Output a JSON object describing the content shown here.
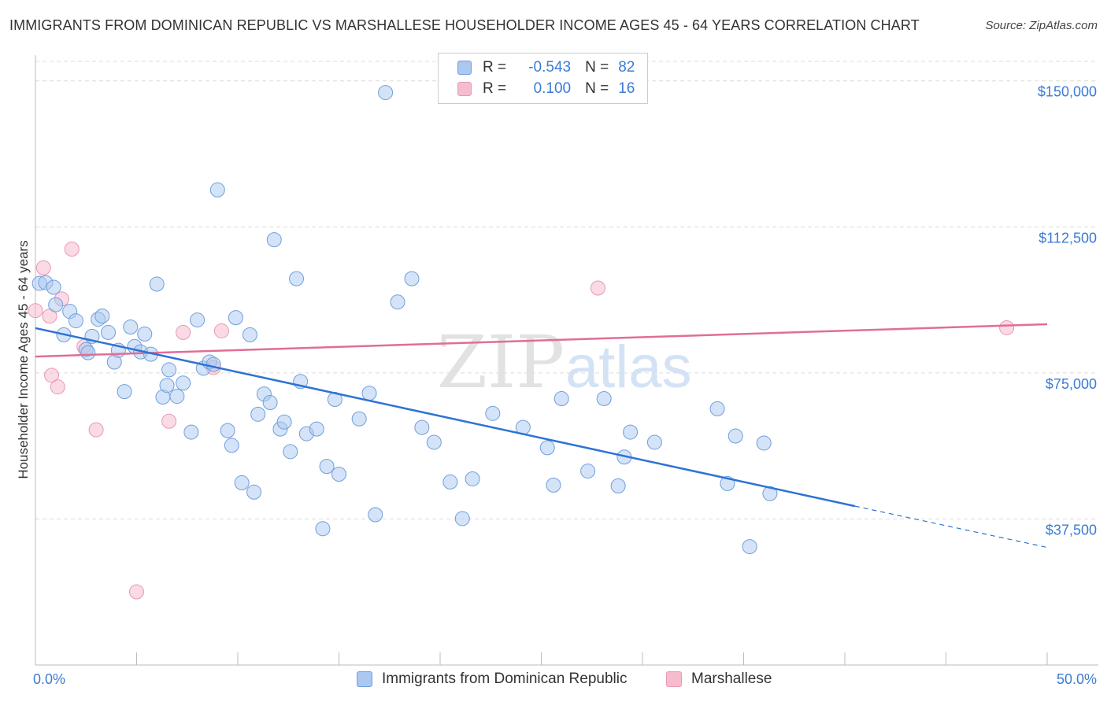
{
  "title": "IMMIGRANTS FROM DOMINICAN REPUBLIC VS MARSHALLESE HOUSEHOLDER INCOME AGES 45 - 64 YEARS CORRELATION CHART",
  "source": "Source: ZipAtlas.com",
  "legend": {
    "rows": [
      {
        "r_label": "R =",
        "r_value": "-0.543",
        "n_label": "N =",
        "n_value": "82"
      },
      {
        "r_label": "R =",
        "r_value": "0.100",
        "n_label": "N =",
        "n_value": "16"
      }
    ]
  },
  "bottom_legend": {
    "series1": "Immigrants from Dominican Republic",
    "series2": "Marshallese"
  },
  "colors": {
    "blue_fill": "#aac8f0",
    "blue_stroke": "#6f9fdc",
    "blue_line": "#2e73d4",
    "pink_fill": "#f6bccd",
    "pink_stroke": "#e899b3",
    "pink_line": "#e06e96",
    "grid": "#dcdcdc",
    "label": "#3a7bd5"
  },
  "watermark": {
    "part1": "ZIP",
    "part2": "atlas"
  },
  "chart_data": {
    "type": "scatter",
    "title": "IMMIGRANTS FROM DOMINICAN REPUBLIC VS MARSHALLESE HOUSEHOLDER INCOME AGES 45 - 64 YEARS CORRELATION CHART",
    "xlabel": "",
    "ylabel": "Householder Income Ages 45 - 64 years",
    "xlim": [
      0,
      50
    ],
    "ylim": [
      0,
      155000
    ],
    "x_tick_labels": [
      "0.0%",
      "50.0%"
    ],
    "y_ticks": [
      37500,
      75000,
      112500,
      150000
    ],
    "y_tick_labels": [
      "$37,500",
      "$75,000",
      "$112,500",
      "$150,000"
    ],
    "grid": true,
    "series": [
      {
        "name": "Immigrants from Dominican Republic",
        "R": -0.543,
        "N": 82,
        "trend": {
          "x0": 0,
          "y0": 86500,
          "x1": 40.5,
          "y1": 40800,
          "dash_to_x": 50,
          "dash_to_y": 30200
        },
        "points": [
          [
            0.2,
            98000
          ],
          [
            0.5,
            98200
          ],
          [
            0.9,
            97000
          ],
          [
            1.0,
            92500
          ],
          [
            1.4,
            84800
          ],
          [
            1.7,
            90800
          ],
          [
            2.0,
            88400
          ],
          [
            2.5,
            81000
          ],
          [
            2.6,
            80200
          ],
          [
            2.8,
            84400
          ],
          [
            3.1,
            88800
          ],
          [
            3.3,
            89600
          ],
          [
            3.6,
            85400
          ],
          [
            3.9,
            77800
          ],
          [
            4.1,
            80800
          ],
          [
            4.4,
            70200
          ],
          [
            4.7,
            86800
          ],
          [
            4.9,
            81800
          ],
          [
            5.2,
            80400
          ],
          [
            5.4,
            85000
          ],
          [
            5.7,
            79800
          ],
          [
            6.0,
            97800
          ],
          [
            6.3,
            68800
          ],
          [
            6.5,
            71800
          ],
          [
            6.6,
            75800
          ],
          [
            7.0,
            69000
          ],
          [
            7.3,
            72400
          ],
          [
            7.7,
            59800
          ],
          [
            8.0,
            88600
          ],
          [
            8.3,
            76200
          ],
          [
            8.6,
            77800
          ],
          [
            8.8,
            77200
          ],
          [
            9.0,
            122000
          ],
          [
            9.5,
            60200
          ],
          [
            9.7,
            56400
          ],
          [
            9.9,
            89200
          ],
          [
            10.2,
            46800
          ],
          [
            10.6,
            84800
          ],
          [
            10.8,
            44400
          ],
          [
            11.0,
            64400
          ],
          [
            11.3,
            69600
          ],
          [
            11.6,
            67400
          ],
          [
            11.8,
            109200
          ],
          [
            12.1,
            60600
          ],
          [
            12.3,
            62400
          ],
          [
            12.6,
            54800
          ],
          [
            12.9,
            99200
          ],
          [
            13.1,
            72800
          ],
          [
            13.4,
            59400
          ],
          [
            13.9,
            60600
          ],
          [
            14.2,
            35000
          ],
          [
            14.4,
            51000
          ],
          [
            14.8,
            68200
          ],
          [
            15.0,
            49000
          ],
          [
            16.0,
            63200
          ],
          [
            16.5,
            69800
          ],
          [
            16.8,
            38600
          ],
          [
            17.3,
            147000
          ],
          [
            17.9,
            93200
          ],
          [
            18.6,
            99200
          ],
          [
            19.1,
            61000
          ],
          [
            19.7,
            57200
          ],
          [
            20.5,
            47000
          ],
          [
            21.1,
            37600
          ],
          [
            21.6,
            47800
          ],
          [
            22.6,
            64600
          ],
          [
            24.1,
            61000
          ],
          [
            25.3,
            55800
          ],
          [
            25.6,
            46200
          ],
          [
            26.0,
            68400
          ],
          [
            27.3,
            49800
          ],
          [
            28.1,
            68400
          ],
          [
            28.8,
            46000
          ],
          [
            29.1,
            53400
          ],
          [
            29.4,
            59800
          ],
          [
            30.6,
            57200
          ],
          [
            33.7,
            65800
          ],
          [
            34.2,
            46600
          ],
          [
            34.6,
            58800
          ],
          [
            35.3,
            30400
          ],
          [
            36.0,
            57000
          ],
          [
            36.3,
            44000
          ]
        ]
      },
      {
        "name": "Marshallese",
        "R": 0.1,
        "N": 16,
        "trend": {
          "x0": 0,
          "y0": 79200,
          "x1": 50,
          "y1": 87500
        },
        "points": [
          [
            0.0,
            91000
          ],
          [
            0.4,
            102000
          ],
          [
            0.7,
            89600
          ],
          [
            0.8,
            74400
          ],
          [
            1.1,
            71400
          ],
          [
            1.3,
            94000
          ],
          [
            1.8,
            106800
          ],
          [
            2.4,
            81800
          ],
          [
            3.0,
            60400
          ],
          [
            5.0,
            18800
          ],
          [
            6.6,
            62600
          ],
          [
            7.3,
            85400
          ],
          [
            8.8,
            76400
          ],
          [
            9.2,
            85800
          ],
          [
            27.8,
            96800
          ],
          [
            48.0,
            86600
          ]
        ]
      }
    ]
  }
}
